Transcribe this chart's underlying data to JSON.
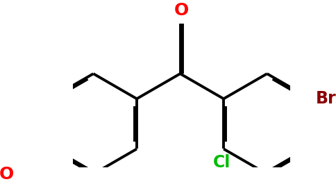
{
  "background_color": "#ffffff",
  "bond_color": "#000000",
  "bond_width": 2.8,
  "dbo": 0.055,
  "figsize": [
    4.85,
    2.65
  ],
  "dpi": 100,
  "xlim": [
    -1.0,
    5.5
  ],
  "ylim": [
    -2.2,
    2.2
  ],
  "ring_r": 0.866,
  "label_O_carbonyl": {
    "text": "O",
    "color": "#ff0000",
    "fontsize": 18,
    "fontweight": "bold"
  },
  "label_Br": {
    "text": "Br",
    "color": "#8b0000",
    "fontsize": 17,
    "fontweight": "bold"
  },
  "label_Cl": {
    "text": "Cl",
    "color": "#00bb00",
    "fontsize": 17,
    "fontweight": "bold"
  },
  "label_O_ethoxy": {
    "text": "O",
    "color": "#ff0000",
    "fontsize": 18,
    "fontweight": "bold"
  }
}
